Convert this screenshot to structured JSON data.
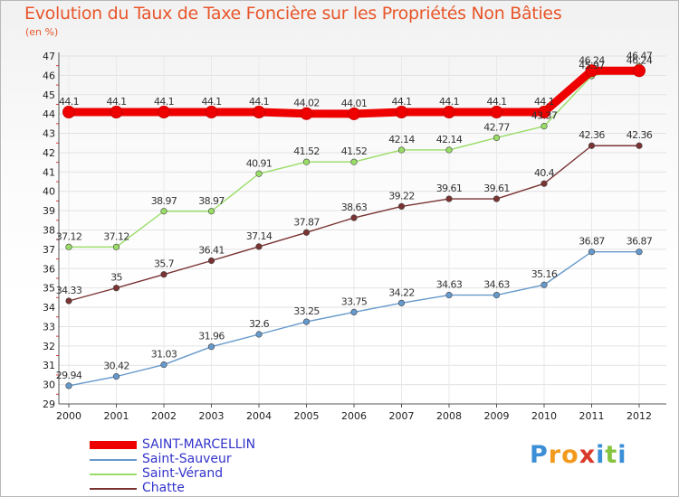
{
  "chart_data": {
    "type": "line",
    "title": "Evolution du Taux de Taxe Foncière sur les Propriétés Non Bâties",
    "subtitle": "(en %)",
    "xlabel": "",
    "ylabel": "(en %)",
    "ylim": [
      29,
      47
    ],
    "yticks": [
      "29",
      "30",
      "31",
      "32",
      "33",
      "34",
      "35",
      "36",
      "37",
      "38",
      "39",
      "40",
      "41",
      "42",
      "43",
      "44",
      "45",
      "46",
      "47"
    ],
    "categories": [
      "2000",
      "2001",
      "2002",
      "2003",
      "2004",
      "2005",
      "2006",
      "2007",
      "2008",
      "2009",
      "2010",
      "2011",
      "2012"
    ],
    "series": [
      {
        "name": "SAINT-MARCELLIN",
        "color": "#ee0000",
        "bold": true,
        "values": [
          44.1,
          44.1,
          44.1,
          44.1,
          44.1,
          44.02,
          44.01,
          44.1,
          44.1,
          44.1,
          44.1,
          46.24,
          46.24
        ],
        "labels": [
          "44.1",
          "44.1",
          "44.1",
          "44.1",
          "44.1",
          "44.02",
          "44.01",
          "44.1",
          "44.1",
          "44.1",
          "44.1",
          "46.24",
          "46.24"
        ]
      },
      {
        "name": "Saint-Sauveur",
        "color": "#6699cc",
        "bold": false,
        "values": [
          29.94,
          30.42,
          31.03,
          31.96,
          32.6,
          33.25,
          33.75,
          34.22,
          34.63,
          34.63,
          35.16,
          36.87,
          36.87
        ],
        "labels": [
          "29.94",
          "30.42",
          "31.03",
          "31.96",
          "32.6",
          "33.25",
          "33.75",
          "34.22",
          "34.63",
          "34.63",
          "35.16",
          "36.87",
          "36.87"
        ]
      },
      {
        "name": "Saint-Vérand",
        "color": "#99dd66",
        "bold": false,
        "values": [
          37.12,
          37.12,
          38.97,
          38.97,
          40.91,
          41.52,
          41.52,
          42.14,
          42.14,
          42.77,
          43.37,
          45.97,
          46.47
        ],
        "labels": [
          "37.12",
          "37.12",
          "38.97",
          "38.97",
          "40.91",
          "41.52",
          "41.52",
          "42.14",
          "42.14",
          "42.77",
          "43.37",
          "45.97",
          "46.47"
        ]
      },
      {
        "name": "Chatte",
        "color": "#7a3333",
        "bold": false,
        "values": [
          34.33,
          35,
          35.7,
          36.41,
          37.14,
          37.87,
          38.63,
          39.22,
          39.61,
          39.61,
          40.4,
          42.36,
          42.36
        ],
        "labels": [
          "34.33",
          "35",
          "35.7",
          "36.41",
          "37.14",
          "37.87",
          "38.63",
          "39.22",
          "39.61",
          "39.61",
          "40.4",
          "42.36",
          "42.36"
        ]
      }
    ],
    "legend_position": "bottom-left"
  },
  "logo": {
    "letters": [
      "P",
      "r",
      "o",
      "x",
      "i",
      "t",
      "i"
    ],
    "colors": [
      "#3b8fd6",
      "#f29a1d",
      "#f29a1d",
      "#d93a2b",
      "#3b8fd6",
      "#86c440",
      "#3b8fd6"
    ]
  }
}
